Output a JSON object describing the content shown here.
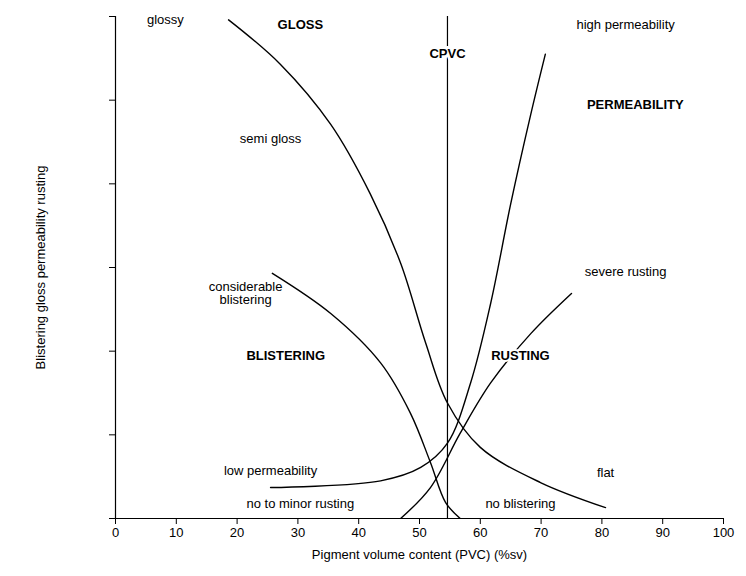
{
  "chart_data": {
    "type": "line",
    "xlabel": "Pigment volume content (PVC) (%sv)",
    "ylabel": "Blistering gloss permeability rusting",
    "xlim": [
      0,
      100
    ],
    "xticks": [
      0,
      10,
      20,
      30,
      40,
      50,
      60,
      70,
      80,
      90,
      100
    ],
    "ylim": [
      0,
      6
    ],
    "yticks": [
      0,
      1,
      2,
      3,
      4,
      5,
      6
    ],
    "tick_labels": "x",
    "grid": false,
    "series": [
      {
        "name": "GLOSS",
        "color": "#000000",
        "label_position": {
          "x": 30.4,
          "y": 5.9
        },
        "x": [
          18.6,
          27.1,
          35.4,
          41.9,
          46.9,
          51.0,
          54.6,
          60.0,
          69.9,
          80.6
        ],
        "values": [
          5.96,
          5.43,
          4.71,
          3.88,
          3.05,
          2.1,
          1.38,
          0.85,
          0.43,
          0.13
        ]
      },
      {
        "name": "PERMEABILITY",
        "color": "#000000",
        "label_position": {
          "x": 85.5,
          "y": 4.95
        },
        "x": [
          25.5,
          43.6,
          50.2,
          54.6,
          58.4,
          61.7,
          65.0,
          68.3,
          70.7
        ],
        "values": [
          0.37,
          0.45,
          0.61,
          0.9,
          1.62,
          2.57,
          3.76,
          4.83,
          5.55
        ]
      },
      {
        "name": "BLISTERING",
        "color": "#000000",
        "label_position": {
          "x": 28.0,
          "y": 1.95
        },
        "x": [
          25.8,
          35.4,
          43.6,
          48.5,
          51.8,
          54.3,
          56.7
        ],
        "values": [
          2.93,
          2.45,
          1.86,
          1.26,
          0.67,
          0.19,
          0
        ]
      },
      {
        "name": "RUSTING",
        "color": "#000000",
        "label_position": {
          "x": 66.6,
          "y": 1.95
        },
        "x": [
          46.9,
          51.8,
          56.7,
          61.7,
          68.3,
          75.0
        ],
        "values": [
          0,
          0.37,
          1.02,
          1.62,
          2.21,
          2.69
        ]
      }
    ],
    "reference_lines": [
      {
        "x": 54.6,
        "label": "CPVC"
      }
    ],
    "annotations": [
      {
        "text": "glossy",
        "x": 8.2,
        "y": 5.96
      },
      {
        "text": "semi gloss",
        "x": 25.5,
        "y": 4.54
      },
      {
        "text": "high permeability",
        "x": 83.9,
        "y": 5.9
      },
      {
        "text": "considerable\nblistering",
        "x": 21.4,
        "y": 2.69
      },
      {
        "text": "severe rusting",
        "x": 83.9,
        "y": 2.95
      },
      {
        "text": "low permeability",
        "x": 25.5,
        "y": 0.57
      },
      {
        "text": "flat",
        "x": 80.6,
        "y": 0.55
      },
      {
        "text": "no to minor rusting",
        "x": 30.4,
        "y": 0.17
      },
      {
        "text": "no blistering",
        "x": 66.6,
        "y": 0.17
      }
    ]
  }
}
